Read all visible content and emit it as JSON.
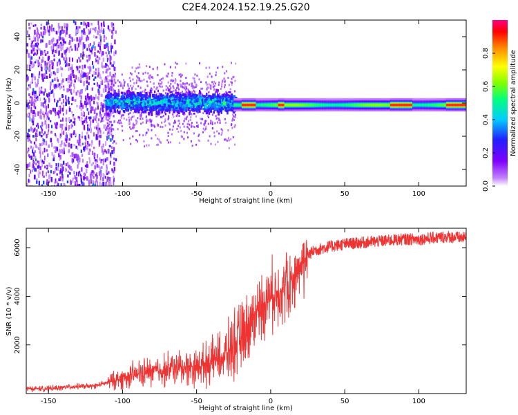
{
  "title": "C2E4.2024.152.19.25.G20",
  "chart_data": [
    {
      "type": "heatmap",
      "xlabel": "Height of straight line (km)",
      "ylabel": "Frequency (Hz)",
      "xlim": [
        -165,
        132
      ],
      "ylim": [
        -50,
        50
      ],
      "xticks": [
        -150,
        -100,
        -50,
        0,
        50,
        100
      ],
      "yticks": [
        -40,
        -20,
        0,
        20,
        40
      ],
      "colorbar": {
        "label": "Normalized spectral amplitude",
        "range": [
          0,
          1
        ],
        "ticks": [
          0.0,
          0.2,
          0.4,
          0.6,
          0.8
        ],
        "colormap": [
          "#ffffff",
          "#a000ff",
          "#3030ff",
          "#00e0ff",
          "#00ff60",
          "#ffff00",
          "#ff8000",
          "#ff0000",
          "#ff0080"
        ]
      },
      "regions": [
        {
          "x": [
            -165,
            -110
          ],
          "center_hz": 0,
          "spread_hz": 50,
          "peak": 0.25
        },
        {
          "x": [
            -110,
            -25
          ],
          "center_hz": 0,
          "spread_hz": 8,
          "peak": 0.45
        },
        {
          "x": [
            -25,
            132
          ],
          "center_hz": -1,
          "spread_hz": 3,
          "peak": 0.95
        }
      ]
    },
    {
      "type": "line",
      "xlabel": "Height of straight line (km)",
      "ylabel": "SNR (10 * v/v)",
      "xlim": [
        -165,
        132
      ],
      "ylim": [
        0,
        6800
      ],
      "xticks": [
        -150,
        -100,
        -50,
        0,
        50,
        100
      ],
      "yticks": [
        2000,
        4000,
        6000
      ],
      "color": "#ee3333",
      "x": [
        -165,
        -150,
        -130,
        -120,
        -110,
        -100,
        -90,
        -80,
        -70,
        -60,
        -50,
        -40,
        -30,
        -25,
        -20,
        -15,
        -10,
        -5,
        0,
        5,
        10,
        15,
        20,
        25,
        30,
        40,
        50,
        60,
        70,
        80,
        90,
        100,
        110,
        120,
        132
      ],
      "y": [
        200,
        200,
        300,
        300,
        450,
        650,
        800,
        900,
        1000,
        1050,
        1100,
        1300,
        1600,
        2000,
        2300,
        2800,
        3300,
        3700,
        4000,
        4200,
        4400,
        4700,
        5300,
        5700,
        5900,
        6050,
        6150,
        6200,
        6250,
        6300,
        6350,
        6350,
        6400,
        6450,
        6400
      ]
    }
  ]
}
